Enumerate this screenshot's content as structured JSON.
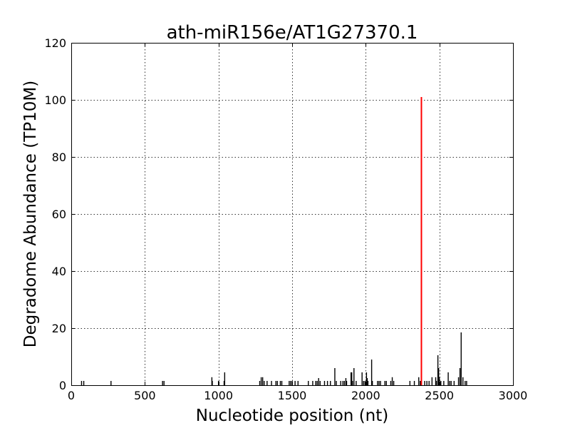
{
  "chart_data": {
    "type": "bar",
    "title": "ath-miR156e/AT1G27370.1",
    "xlabel": "Nucleotide position (nt)",
    "ylabel": "Degradome Abundance (TP10M)",
    "xlim": [
      0,
      3000
    ],
    "ylim": [
      0,
      120
    ],
    "xticks": [
      0,
      500,
      1000,
      1500,
      2000,
      2500,
      3000
    ],
    "yticks": [
      0,
      20,
      40,
      60,
      80,
      100,
      120
    ],
    "grid": true,
    "colors": {
      "bar": "#000000",
      "highlight": "#ff0000"
    },
    "series": [
      {
        "values": [
          [
            70,
            1.5
          ],
          [
            85,
            1.5
          ],
          [
            270,
            1.5
          ],
          [
            620,
            1.5
          ],
          [
            630,
            1.5
          ],
          [
            955,
            2.8
          ],
          [
            958,
            1.5
          ],
          [
            1000,
            1.5
          ],
          [
            1038,
            1.5
          ],
          [
            1042,
            4.5
          ],
          [
            1280,
            1.5
          ],
          [
            1290,
            2.8
          ],
          [
            1300,
            2.8
          ],
          [
            1310,
            1.5
          ],
          [
            1330,
            1.5
          ],
          [
            1360,
            1.5
          ],
          [
            1390,
            1.5
          ],
          [
            1400,
            1.5
          ],
          [
            1420,
            1.5
          ],
          [
            1430,
            1.5
          ],
          [
            1480,
            1.5
          ],
          [
            1490,
            1.5
          ],
          [
            1500,
            1.5
          ],
          [
            1520,
            1.5
          ],
          [
            1540,
            1.5
          ],
          [
            1610,
            1.5
          ],
          [
            1640,
            1.5
          ],
          [
            1660,
            1.5
          ],
          [
            1670,
            1.5
          ],
          [
            1680,
            2.5
          ],
          [
            1690,
            1.5
          ],
          [
            1720,
            1.5
          ],
          [
            1740,
            1.5
          ],
          [
            1760,
            1.5
          ],
          [
            1790,
            6.0
          ],
          [
            1800,
            1.5
          ],
          [
            1830,
            1.5
          ],
          [
            1845,
            1.5
          ],
          [
            1855,
            1.5
          ],
          [
            1865,
            2.5
          ],
          [
            1870,
            1.5
          ],
          [
            1900,
            4.5
          ],
          [
            1905,
            4.5
          ],
          [
            1910,
            1.5
          ],
          [
            1920,
            6.0
          ],
          [
            1935,
            1.5
          ],
          [
            1975,
            4.5
          ],
          [
            1985,
            1.5
          ],
          [
            1995,
            1.5
          ],
          [
            2005,
            4.5
          ],
          [
            2010,
            2.5
          ],
          [
            2015,
            1.5
          ],
          [
            2040,
            9.0
          ],
          [
            2045,
            1.5
          ],
          [
            2080,
            1.5
          ],
          [
            2090,
            1.5
          ],
          [
            2100,
            1.5
          ],
          [
            2130,
            1.5
          ],
          [
            2140,
            1.5
          ],
          [
            2170,
            1.5
          ],
          [
            2180,
            2.8
          ],
          [
            2190,
            1.5
          ],
          [
            2300,
            1.5
          ],
          [
            2330,
            1.5
          ],
          [
            2360,
            2.8
          ],
          [
            2370,
            1.5
          ],
          [
            2400,
            1.5
          ],
          [
            2415,
            1.5
          ],
          [
            2430,
            1.5
          ],
          [
            2450,
            2.8
          ],
          [
            2475,
            2.8
          ],
          [
            2480,
            1.5
          ],
          [
            2490,
            10.5
          ],
          [
            2495,
            6.0
          ],
          [
            2500,
            2.8
          ],
          [
            2510,
            1.5
          ],
          [
            2530,
            1.5
          ],
          [
            2560,
            4.5
          ],
          [
            2570,
            1.5
          ],
          [
            2580,
            1.5
          ],
          [
            2600,
            1.5
          ],
          [
            2630,
            2.8
          ],
          [
            2640,
            6.0
          ],
          [
            2648,
            18.5
          ],
          [
            2660,
            2.8
          ],
          [
            2675,
            1.5
          ],
          [
            2685,
            1.5
          ]
        ]
      }
    ],
    "highlight": {
      "x": 2378,
      "y": 101
    }
  }
}
